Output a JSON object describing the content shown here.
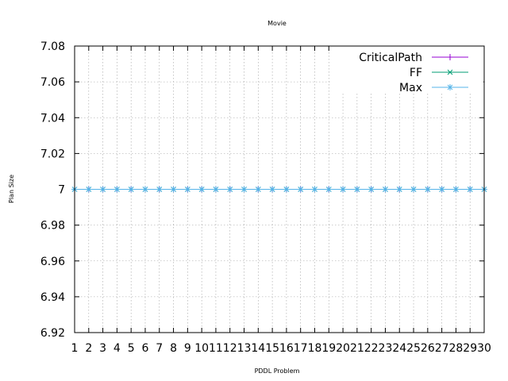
{
  "chart_data": {
    "type": "line",
    "title": "Movie",
    "xlabel": "PDDL Problem",
    "ylabel": "Plan Size",
    "x": [
      1,
      2,
      3,
      4,
      5,
      6,
      7,
      8,
      9,
      10,
      11,
      12,
      13,
      14,
      15,
      16,
      17,
      18,
      19,
      20,
      21,
      22,
      23,
      24,
      25,
      26,
      27,
      28,
      29,
      30
    ],
    "xlim": [
      1,
      30
    ],
    "ylim": [
      6.92,
      7.08
    ],
    "yticks": [
      "6.92",
      "6.94",
      "6.96",
      "6.98",
      "7",
      "7.02",
      "7.04",
      "7.06",
      "7.08"
    ],
    "xticks": [
      "1",
      "2",
      "3",
      "4",
      "5",
      "6",
      "7",
      "8",
      "9",
      "10",
      "11",
      "12",
      "13",
      "14",
      "15",
      "16",
      "17",
      "18",
      "19",
      "20",
      "21",
      "22",
      "23",
      "24",
      "25",
      "26",
      "27",
      "28",
      "29",
      "30"
    ],
    "grid": true,
    "legend_position": "top-right",
    "series": [
      {
        "name": "CriticalPath",
        "color": "#9400d3",
        "marker": "plus",
        "values": [
          7,
          7,
          7,
          7,
          7,
          7,
          7,
          7,
          7,
          7,
          7,
          7,
          7,
          7,
          7,
          7,
          7,
          7,
          7,
          7,
          7,
          7,
          7,
          7,
          7,
          7,
          7,
          7,
          7,
          7
        ]
      },
      {
        "name": "FF",
        "color": "#009e73",
        "marker": "cross",
        "values": [
          7,
          7,
          7,
          7,
          7,
          7,
          7,
          7,
          7,
          7,
          7,
          7,
          7,
          7,
          7,
          7,
          7,
          7,
          7,
          7,
          7,
          7,
          7,
          7,
          7,
          7,
          7,
          7,
          7,
          7
        ]
      },
      {
        "name": "Max",
        "color": "#56b4e9",
        "marker": "star",
        "values": [
          7,
          7,
          7,
          7,
          7,
          7,
          7,
          7,
          7,
          7,
          7,
          7,
          7,
          7,
          7,
          7,
          7,
          7,
          7,
          7,
          7,
          7,
          7,
          7,
          7,
          7,
          7,
          7,
          7,
          7
        ]
      }
    ]
  }
}
